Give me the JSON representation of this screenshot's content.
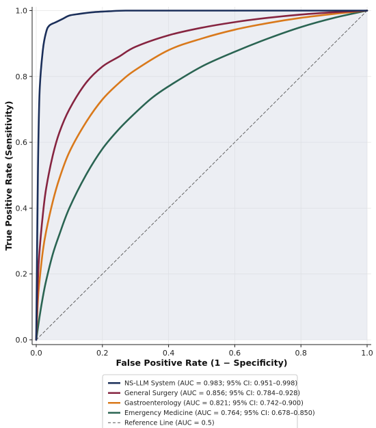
{
  "chart_data": {
    "type": "line",
    "title": "",
    "xlabel": "False Positive Rate (1 − Specificity)",
    "ylabel": "True Positive Rate (Sensitivity)",
    "xlim": [
      0,
      1
    ],
    "ylim": [
      0,
      1
    ],
    "xticks": [
      "0.0",
      "0.2",
      "0.4",
      "0.6",
      "0.8",
      "1.0"
    ],
    "yticks": [
      "0.0",
      "0.2",
      "0.4",
      "0.6",
      "0.8",
      "1.0"
    ],
    "grid": true,
    "legend_position": "bottom-center",
    "shaded_region": "area under NS-LLM System curve",
    "series": [
      {
        "name": "NS-LLM System (AUC = 0.983; 95% CI: 0.951–0.998)",
        "color": "#1b2f5a",
        "x": [
          0,
          0.005,
          0.01,
          0.02,
          0.03,
          0.04,
          0.06,
          0.08,
          0.1,
          0.13,
          0.17,
          0.22,
          0.27,
          0.4,
          0.6,
          0.8,
          1.0
        ],
        "y": [
          0,
          0.5,
          0.75,
          0.88,
          0.935,
          0.955,
          0.965,
          0.975,
          0.985,
          0.99,
          0.995,
          0.998,
          1.0,
          1.0,
          1.0,
          1.0,
          1.0
        ]
      },
      {
        "name": "General Surgery (AUC = 0.856; 95% CI: 0.784–0.928)",
        "color": "#862440",
        "x": [
          0,
          0.005,
          0.01,
          0.02,
          0.03,
          0.05,
          0.07,
          0.1,
          0.15,
          0.2,
          0.25,
          0.3,
          0.4,
          0.5,
          0.6,
          0.7,
          0.8,
          0.9,
          1.0
        ],
        "y": [
          0,
          0.18,
          0.27,
          0.38,
          0.46,
          0.56,
          0.63,
          0.7,
          0.78,
          0.83,
          0.86,
          0.89,
          0.925,
          0.948,
          0.965,
          0.978,
          0.988,
          0.995,
          1.0
        ]
      },
      {
        "name": "Gastroenterology (AUC = 0.821; 95% CI: 0.742–0.900)",
        "color": "#d9791b",
        "x": [
          0,
          0.005,
          0.01,
          0.02,
          0.03,
          0.05,
          0.07,
          0.1,
          0.15,
          0.2,
          0.25,
          0.3,
          0.4,
          0.5,
          0.6,
          0.7,
          0.8,
          0.9,
          1.0
        ],
        "y": [
          0,
          0.12,
          0.18,
          0.27,
          0.33,
          0.42,
          0.49,
          0.57,
          0.66,
          0.73,
          0.78,
          0.82,
          0.88,
          0.915,
          0.942,
          0.962,
          0.978,
          0.99,
          1.0
        ]
      },
      {
        "name": "Emergency Medicine (AUC = 0.764; 95% CI: 0.678–0.850)",
        "color": "#2a6452",
        "x": [
          0,
          0.01,
          0.02,
          0.03,
          0.05,
          0.07,
          0.1,
          0.15,
          0.2,
          0.25,
          0.3,
          0.35,
          0.4,
          0.5,
          0.6,
          0.7,
          0.8,
          0.9,
          1.0
        ],
        "y": [
          0,
          0.07,
          0.13,
          0.18,
          0.26,
          0.32,
          0.4,
          0.5,
          0.58,
          0.64,
          0.69,
          0.735,
          0.77,
          0.83,
          0.875,
          0.915,
          0.95,
          0.978,
          1.0
        ]
      },
      {
        "name": "Reference Line (AUC = 0.5)",
        "color": "#555555",
        "dashed": true,
        "x": [
          0,
          1
        ],
        "y": [
          0,
          1
        ]
      }
    ]
  }
}
